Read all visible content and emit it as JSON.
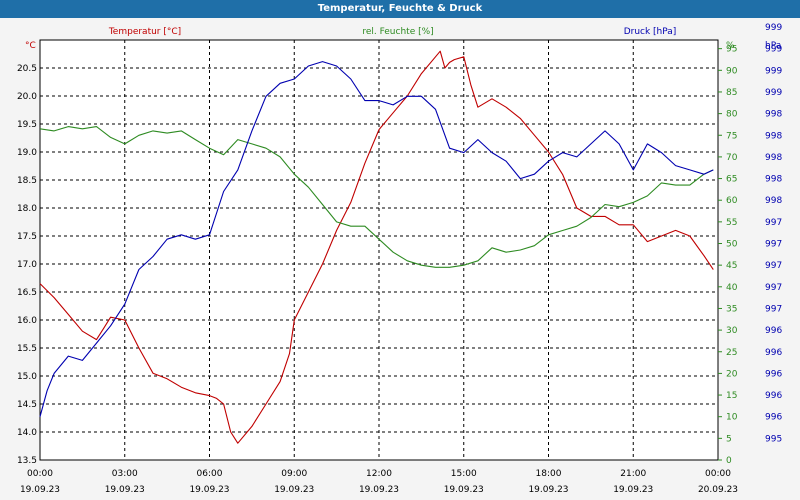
{
  "window": {
    "title": "Temperatur, Feuchte & Druck"
  },
  "colors": {
    "temperature": "#c00000",
    "humidity": "#2e8b22",
    "pressure": "#0000b0",
    "background": "#ffffff",
    "grid": "#000000",
    "titlebar": "#1f6fa8"
  },
  "chart_data": {
    "type": "line",
    "x_ticks": [
      {
        "time": "00:00",
        "date": "19.09.23"
      },
      {
        "time": "03:00",
        "date": "19.09.23"
      },
      {
        "time": "06:00",
        "date": "19.09.23"
      },
      {
        "time": "09:00",
        "date": "19.09.23"
      },
      {
        "time": "12:00",
        "date": "19.09.23"
      },
      {
        "time": "15:00",
        "date": "19.09.23"
      },
      {
        "time": "18:00",
        "date": "19.09.23"
      },
      {
        "time": "21:00",
        "date": "19.09.23"
      },
      {
        "time": "00:00",
        "date": "20.09.23"
      }
    ],
    "xlim": [
      "19.09.23 00:00",
      "20.09.23 00:00"
    ],
    "grid": true,
    "axes": {
      "temperature": {
        "label": "Temperatur [°C]",
        "unit": "°C",
        "position": "left",
        "ylim": [
          13.5,
          21.0
        ],
        "ticks": [
          "13.5",
          "14.0",
          "14.5",
          "15.0",
          "15.5",
          "16.0",
          "16.5",
          "17.0",
          "17.5",
          "18.0",
          "18.5",
          "19.0",
          "19.5",
          "20.0",
          "20.5"
        ]
      },
      "humidity": {
        "label": "rel. Feuchte [%]",
        "unit": "%",
        "position": "right",
        "ylim": [
          0,
          97
        ],
        "ticks": [
          "0",
          "5",
          "10",
          "15",
          "20",
          "25",
          "30",
          "35",
          "40",
          "45",
          "50",
          "55",
          "60",
          "65",
          "70",
          "75",
          "80",
          "85",
          "90",
          "95"
        ]
      },
      "pressure": {
        "label": "Druck [hPa]",
        "unit": "hPa",
        "position": "right-outer",
        "ticks": [
          "995",
          "996",
          "996",
          "996",
          "996",
          "996",
          "997",
          "997",
          "997",
          "997",
          "997",
          "998",
          "998",
          "998",
          "998",
          "998",
          "999",
          "999",
          "999",
          "999"
        ]
      }
    },
    "series": [
      {
        "name": "Temperatur [°C]",
        "axis": "temperature",
        "times": [
          "00:00",
          "00:30",
          "01:00",
          "01:30",
          "02:00",
          "02:15",
          "02:30",
          "03:00",
          "03:30",
          "04:00",
          "04:30",
          "05:00",
          "05:30",
          "06:00",
          "06:15",
          "06:30",
          "06:45",
          "07:00",
          "07:30",
          "08:00",
          "08:30",
          "08:50",
          "09:00",
          "09:30",
          "10:00",
          "10:30",
          "11:00",
          "11:30",
          "12:00",
          "12:30",
          "13:00",
          "13:30",
          "14:00",
          "14:10",
          "14:20",
          "14:30",
          "14:40",
          "15:00",
          "15:15",
          "15:30",
          "16:00",
          "16:30",
          "17:00",
          "17:30",
          "18:00",
          "18:30",
          "19:00",
          "19:30",
          "20:00",
          "20:30",
          "21:00",
          "21:30",
          "22:00",
          "22:30",
          "23:00",
          "23:30",
          "23:50"
        ],
        "values": [
          16.65,
          16.4,
          16.1,
          15.8,
          15.65,
          15.85,
          16.05,
          16.0,
          15.5,
          15.05,
          14.95,
          14.8,
          14.7,
          14.65,
          14.6,
          14.5,
          14.0,
          13.8,
          14.1,
          14.5,
          14.9,
          15.4,
          16.0,
          16.5,
          17.0,
          17.6,
          18.1,
          18.8,
          19.4,
          19.7,
          20.0,
          20.4,
          20.7,
          20.8,
          20.5,
          20.6,
          20.65,
          20.7,
          20.2,
          19.8,
          19.95,
          19.8,
          19.6,
          19.3,
          19.0,
          18.6,
          18.0,
          17.85,
          17.85,
          17.7,
          17.7,
          17.4,
          17.5,
          17.6,
          17.5,
          17.15,
          16.9
        ]
      },
      {
        "name": "rel. Feuchte [%]",
        "axis": "humidity",
        "times": [
          "00:00",
          "00:30",
          "01:00",
          "01:30",
          "02:00",
          "02:30",
          "03:00",
          "03:30",
          "04:00",
          "04:30",
          "05:00",
          "05:30",
          "06:00",
          "06:30",
          "07:00",
          "07:30",
          "08:00",
          "08:30",
          "09:00",
          "09:30",
          "10:00",
          "10:30",
          "11:00",
          "11:30",
          "12:00",
          "12:30",
          "13:00",
          "13:30",
          "14:00",
          "14:30",
          "15:00",
          "15:30",
          "16:00",
          "16:30",
          "17:00",
          "17:30",
          "18:00",
          "18:30",
          "19:00",
          "19:30",
          "20:00",
          "20:30",
          "21:00",
          "21:30",
          "22:00",
          "22:30",
          "23:00",
          "23:30",
          "23:50"
        ],
        "values": [
          76.5,
          76,
          77,
          76.5,
          77,
          74.5,
          73,
          75,
          76,
          75.5,
          76,
          74,
          72,
          70.5,
          74,
          73,
          72,
          70,
          66,
          63,
          59,
          55,
          54,
          54,
          51,
          48,
          46,
          45,
          44.5,
          44.5,
          45,
          46,
          49,
          48,
          48.5,
          49.5,
          52,
          53,
          54,
          56,
          59,
          58.5,
          59.5,
          61,
          64,
          63.5,
          63.5,
          66,
          67
        ]
      },
      {
        "name": "Druck [hPa]",
        "axis": "pressure",
        "times": [
          "00:00",
          "00:15",
          "00:30",
          "01:00",
          "01:30",
          "02:00",
          "02:30",
          "03:00",
          "03:30",
          "04:00",
          "04:30",
          "05:00",
          "05:30",
          "06:00",
          "06:30",
          "07:00",
          "07:30",
          "08:00",
          "08:30",
          "09:00",
          "09:30",
          "10:00",
          "10:30",
          "11:00",
          "11:30",
          "12:00",
          "12:30",
          "13:00",
          "13:30",
          "14:00",
          "14:30",
          "15:00",
          "15:30",
          "16:00",
          "16:30",
          "17:00",
          "17:30",
          "18:00",
          "18:30",
          "19:00",
          "19:30",
          "20:00",
          "20:30",
          "21:00",
          "21:30",
          "22:00",
          "22:30",
          "23:00",
          "23:30",
          "23:50"
        ],
        "values": [
          995.25,
          995.55,
          995.75,
          995.95,
          995.9,
          996.1,
          996.3,
          996.55,
          996.95,
          997.1,
          997.3,
          997.35,
          997.3,
          997.35,
          997.85,
          998.1,
          998.55,
          998.95,
          999.1,
          999.15,
          999.3,
          999.35,
          999.3,
          999.15,
          998.9,
          998.9,
          998.85,
          998.95,
          998.95,
          998.8,
          998.35,
          998.3,
          998.45,
          998.3,
          998.2,
          998.0,
          998.05,
          998.2,
          998.3,
          998.25,
          998.4,
          998.55,
          998.4,
          998.1,
          998.4,
          998.3,
          998.15,
          998.1,
          998.05,
          998.1
        ]
      }
    ]
  }
}
